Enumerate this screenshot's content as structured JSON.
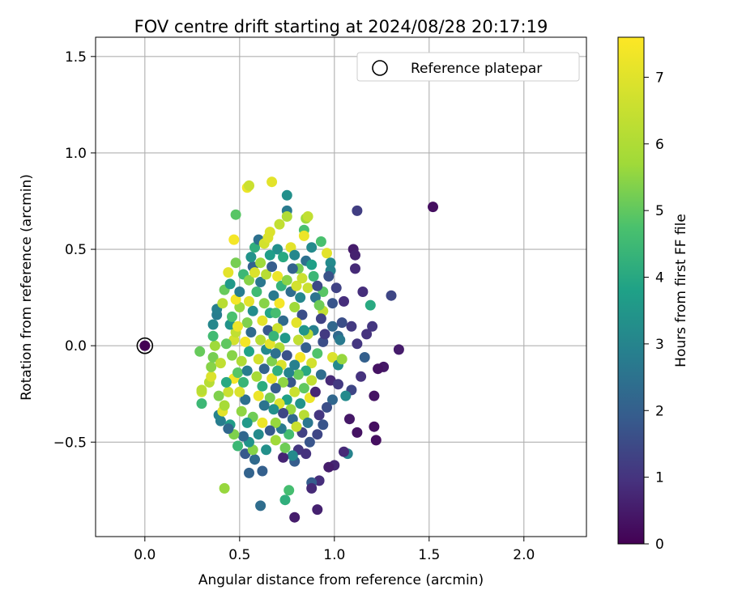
{
  "chart_data": {
    "type": "scatter",
    "title": "FOV centre drift starting at 2024/08/28 20:17:19",
    "xlabel": "Angular distance from reference (arcmin)",
    "ylabel": "Rotation from reference (arcmin)",
    "xlim": [
      -0.26,
      2.33
    ],
    "ylim": [
      -0.99,
      1.6
    ],
    "xticks": [
      0.0,
      0.5,
      1.0,
      1.5,
      2.0
    ],
    "xtick_labels": [
      "0.0",
      "0.5",
      "1.0",
      "1.5",
      "2.0"
    ],
    "yticks": [
      -0.5,
      0.0,
      0.5,
      1.0,
      1.5
    ],
    "ytick_labels": [
      "−0.5",
      "0.0",
      "0.5",
      "1.0",
      "1.5"
    ],
    "grid": true,
    "legend": {
      "position": "top-right",
      "entries": [
        {
          "label": "Reference platepar",
          "marker": "open-circle"
        }
      ]
    },
    "reference_point": {
      "x": 0.0,
      "y": 0.0,
      "c": 0.0
    },
    "colorbar": {
      "label": "Hours from first FF file",
      "colormap": "viridis",
      "range": [
        0,
        7.6
      ],
      "ticks": [
        0,
        1,
        2,
        3,
        4,
        5,
        6,
        7
      ],
      "tick_labels": [
        "0",
        "1",
        "2",
        "3",
        "4",
        "5",
        "6",
        "7"
      ]
    },
    "series_note": "point columns: x (arcmin), y (arcmin), c (hours)",
    "points": [
      [
        1.52,
        0.72,
        0.3
      ],
      [
        1.12,
        0.7,
        1.4
      ],
      [
        1.3,
        0.26,
        1.6
      ],
      [
        1.34,
        -0.02,
        0.6
      ],
      [
        1.26,
        -0.11,
        0.5
      ],
      [
        1.23,
        -0.12,
        0.4
      ],
      [
        1.21,
        -0.26,
        0.4
      ],
      [
        1.22,
        -0.49,
        0.3
      ],
      [
        1.21,
        -0.42,
        0.3
      ],
      [
        1.12,
        -0.45,
        0.4
      ],
      [
        1.1,
        0.5,
        0.6
      ],
      [
        1.11,
        0.47,
        0.7
      ],
      [
        1.11,
        0.4,
        0.9
      ],
      [
        1.15,
        0.28,
        1.0
      ],
      [
        1.19,
        0.21,
        4.6
      ],
      [
        1.2,
        0.1,
        1.2
      ],
      [
        1.17,
        0.06,
        1.1
      ],
      [
        1.09,
        0.1,
        1.3
      ],
      [
        1.05,
        0.23,
        1.0
      ],
      [
        1.01,
        0.3,
        1.5
      ],
      [
        1.12,
        0.01,
        1.2
      ],
      [
        1.16,
        -0.06,
        2.3
      ],
      [
        1.14,
        -0.16,
        1.1
      ],
      [
        1.09,
        -0.23,
        1.6
      ],
      [
        1.06,
        -0.26,
        3.6
      ],
      [
        1.08,
        -0.38,
        0.5
      ],
      [
        1.07,
        -0.56,
        3.4
      ],
      [
        1.05,
        -0.55,
        0.9
      ],
      [
        1.0,
        -0.62,
        0.8
      ],
      [
        0.97,
        -0.63,
        0.6
      ],
      [
        0.92,
        -0.7,
        1.0
      ],
      [
        0.88,
        -0.71,
        2.2
      ],
      [
        0.88,
        -0.74,
        0.9
      ],
      [
        0.79,
        -0.89,
        0.6
      ],
      [
        0.91,
        -0.85,
        0.7
      ],
      [
        0.76,
        -0.75,
        5.3
      ],
      [
        0.74,
        -0.8,
        4.8
      ],
      [
        0.62,
        -0.65,
        2.3
      ],
      [
        0.61,
        -0.83,
        2.7
      ],
      [
        0.55,
        -0.66,
        2.4
      ],
      [
        0.53,
        -0.56,
        2.1
      ],
      [
        0.42,
        -0.74,
        6.4
      ],
      [
        0.45,
        -0.41,
        4.2
      ],
      [
        0.4,
        -0.39,
        3.2
      ],
      [
        0.39,
        -0.36,
        3.4
      ],
      [
        0.3,
        -0.3,
        5.1
      ],
      [
        0.3,
        -0.24,
        7.0
      ],
      [
        0.3,
        -0.23,
        6.8
      ],
      [
        0.34,
        -0.19,
        6.8
      ],
      [
        0.35,
        -0.16,
        7.2
      ],
      [
        0.35,
        -0.11,
        6.2
      ],
      [
        0.36,
        -0.06,
        6.0
      ],
      [
        0.29,
        -0.03,
        5.8
      ],
      [
        0.37,
        0.0,
        6.5
      ],
      [
        0.36,
        0.05,
        5.2
      ],
      [
        0.36,
        0.11,
        3.5
      ],
      [
        0.38,
        0.16,
        3.2
      ],
      [
        0.38,
        0.19,
        3.3
      ],
      [
        0.41,
        0.22,
        6.8
      ],
      [
        0.42,
        0.29,
        5.8
      ],
      [
        0.45,
        0.32,
        4.1
      ],
      [
        0.48,
        0.43,
        6.0
      ],
      [
        0.44,
        0.38,
        7.3
      ],
      [
        0.47,
        0.55,
        7.5
      ],
      [
        0.48,
        0.68,
        5.6
      ],
      [
        0.54,
        0.82,
        7.4
      ],
      [
        0.55,
        0.83,
        7.0
      ],
      [
        0.67,
        0.85,
        7.3
      ],
      [
        0.75,
        0.78,
        3.8
      ],
      [
        0.75,
        0.7,
        3.1
      ],
      [
        0.75,
        0.67,
        6.7
      ],
      [
        0.71,
        0.63,
        6.9
      ],
      [
        0.66,
        0.59,
        7.2
      ],
      [
        0.85,
        0.66,
        6.5
      ],
      [
        0.86,
        0.67,
        6.9
      ],
      [
        0.84,
        0.6,
        5.4
      ],
      [
        0.84,
        0.57,
        7.4
      ],
      [
        0.88,
        0.51,
        3.6
      ],
      [
        0.93,
        0.54,
        5.4
      ],
      [
        0.96,
        0.48,
        7.3
      ],
      [
        0.98,
        0.43,
        3.6
      ],
      [
        0.98,
        0.39,
        3.4
      ],
      [
        0.94,
        0.28,
        5.6
      ],
      [
        0.94,
        0.18,
        6.9
      ],
      [
        0.97,
        0.36,
        1.9
      ],
      [
        0.99,
        0.22,
        2.0
      ],
      [
        0.99,
        0.1,
        2.5
      ],
      [
        1.04,
        0.12,
        1.8
      ],
      [
        1.02,
        0.05,
        2.6
      ],
      [
        1.03,
        0.03,
        3.1
      ],
      [
        0.99,
        -0.06,
        7.2
      ],
      [
        1.02,
        -0.1,
        3.6
      ],
      [
        1.04,
        -0.07,
        6.4
      ],
      [
        0.98,
        -0.18,
        0.9
      ],
      [
        1.02,
        -0.2,
        1.3
      ],
      [
        0.99,
        -0.28,
        2.5
      ],
      [
        0.96,
        -0.32,
        1.8
      ],
      [
        0.92,
        -0.36,
        1.2
      ],
      [
        0.94,
        -0.41,
        2.0
      ],
      [
        0.91,
        -0.46,
        1.6
      ],
      [
        0.87,
        -0.5,
        2.0
      ],
      [
        0.83,
        -0.45,
        1.5
      ],
      [
        0.81,
        -0.54,
        1.2
      ],
      [
        0.85,
        -0.56,
        1.1
      ],
      [
        0.79,
        -0.6,
        2.2
      ],
      [
        0.78,
        -0.57,
        3.6
      ],
      [
        0.73,
        -0.58,
        0.8
      ],
      [
        0.74,
        -0.53,
        5.9
      ],
      [
        0.69,
        -0.49,
        6.5
      ],
      [
        0.64,
        -0.54,
        3.8
      ],
      [
        0.58,
        -0.59,
        2.6
      ],
      [
        0.57,
        -0.54,
        6.2
      ],
      [
        0.55,
        -0.5,
        3.9
      ],
      [
        0.52,
        -0.47,
        2.5
      ],
      [
        0.49,
        -0.52,
        5.1
      ],
      [
        0.47,
        -0.46,
        6.1
      ],
      [
        0.44,
        -0.43,
        2.5
      ],
      [
        0.41,
        -0.34,
        7.3
      ],
      [
        0.42,
        -0.31,
        6.6
      ],
      [
        0.44,
        -0.24,
        7.0
      ],
      [
        0.47,
        -0.17,
        7.5
      ],
      [
        0.49,
        -0.14,
        5.6
      ],
      [
        0.46,
        -0.05,
        6.2
      ],
      [
        0.47,
        0.03,
        7.1
      ],
      [
        0.48,
        0.07,
        6.9
      ],
      [
        0.45,
        0.11,
        3.9
      ],
      [
        0.46,
        0.15,
        5.4
      ],
      [
        0.5,
        0.2,
        6.4
      ],
      [
        0.48,
        0.24,
        7.5
      ],
      [
        0.5,
        0.28,
        3.2
      ],
      [
        0.52,
        0.37,
        5.1
      ],
      [
        0.55,
        0.34,
        6.2
      ],
      [
        0.57,
        0.41,
        2.4
      ],
      [
        0.56,
        0.46,
        3.9
      ],
      [
        0.58,
        0.51,
        4.8
      ],
      [
        0.6,
        0.55,
        2.8
      ],
      [
        0.63,
        0.53,
        7.1
      ],
      [
        0.65,
        0.56,
        7.2
      ],
      [
        0.7,
        0.5,
        3.8
      ],
      [
        0.73,
        0.46,
        4.6
      ],
      [
        0.77,
        0.51,
        7.3
      ],
      [
        0.79,
        0.47,
        3.5
      ],
      [
        0.81,
        0.4,
        6.0
      ],
      [
        0.85,
        0.44,
        2.8
      ],
      [
        0.88,
        0.42,
        4.3
      ],
      [
        0.89,
        0.36,
        5.1
      ],
      [
        0.86,
        0.3,
        7.0
      ],
      [
        0.9,
        0.25,
        2.9
      ],
      [
        0.92,
        0.21,
        5.9
      ],
      [
        0.93,
        0.14,
        1.5
      ],
      [
        0.89,
        0.08,
        3.3
      ],
      [
        0.86,
        0.06,
        6.8
      ],
      [
        0.94,
        0.02,
        1.8
      ],
      [
        0.91,
        -0.04,
        5.5
      ],
      [
        0.88,
        -0.09,
        7.1
      ],
      [
        0.85,
        -0.13,
        4.6
      ],
      [
        0.88,
        -0.18,
        6.9
      ],
      [
        0.84,
        -0.22,
        5.7
      ],
      [
        0.87,
        -0.27,
        7.4
      ],
      [
        0.82,
        -0.3,
        3.9
      ],
      [
        0.84,
        -0.36,
        6.8
      ],
      [
        0.78,
        -0.38,
        2.5
      ],
      [
        0.8,
        -0.42,
        7.0
      ],
      [
        0.76,
        -0.46,
        5.3
      ],
      [
        0.72,
        -0.43,
        3.1
      ],
      [
        0.69,
        -0.4,
        6.4
      ],
      [
        0.66,
        -0.44,
        2.1
      ],
      [
        0.62,
        -0.4,
        7.4
      ],
      [
        0.6,
        -0.46,
        3.6
      ],
      [
        0.57,
        -0.37,
        5.9
      ],
      [
        0.54,
        -0.4,
        4.1
      ],
      [
        0.51,
        -0.34,
        6.3
      ],
      [
        0.53,
        -0.28,
        2.8
      ],
      [
        0.5,
        -0.24,
        7.2
      ],
      [
        0.52,
        -0.19,
        5.0
      ],
      [
        0.54,
        -0.13,
        3.2
      ],
      [
        0.51,
        -0.08,
        6.7
      ],
      [
        0.55,
        -0.03,
        4.4
      ],
      [
        0.53,
        0.02,
        7.5
      ],
      [
        0.56,
        0.07,
        2.6
      ],
      [
        0.54,
        0.12,
        6.1
      ],
      [
        0.57,
        0.18,
        3.7
      ],
      [
        0.55,
        0.23,
        7.3
      ],
      [
        0.59,
        0.28,
        5.2
      ],
      [
        0.61,
        0.33,
        3.0
      ],
      [
        0.64,
        0.37,
        6.8
      ],
      [
        0.67,
        0.41,
        2.2
      ],
      [
        0.7,
        0.36,
        7.4
      ],
      [
        0.72,
        0.31,
        4.9
      ],
      [
        0.75,
        0.34,
        6.2
      ],
      [
        0.77,
        0.28,
        2.7
      ],
      [
        0.8,
        0.31,
        7.1
      ],
      [
        0.82,
        0.25,
        3.5
      ],
      [
        0.79,
        0.2,
        6.5
      ],
      [
        0.83,
        0.16,
        1.8
      ],
      [
        0.8,
        0.12,
        7.3
      ],
      [
        0.84,
        0.08,
        4.0
      ],
      [
        0.81,
        0.03,
        6.9
      ],
      [
        0.85,
        -0.01,
        2.3
      ],
      [
        0.82,
        -0.06,
        7.5
      ],
      [
        0.79,
        -0.1,
        3.3
      ],
      [
        0.81,
        -0.15,
        5.8
      ],
      [
        0.77,
        -0.19,
        2.0
      ],
      [
        0.79,
        -0.24,
        7.0
      ],
      [
        0.75,
        -0.28,
        4.3
      ],
      [
        0.77,
        -0.33,
        6.4
      ],
      [
        0.73,
        -0.35,
        1.6
      ],
      [
        0.71,
        -0.3,
        7.2
      ],
      [
        0.68,
        -0.33,
        3.8
      ],
      [
        0.66,
        -0.27,
        6.0
      ],
      [
        0.63,
        -0.31,
        2.9
      ],
      [
        0.6,
        -0.26,
        7.4
      ],
      [
        0.62,
        -0.21,
        4.7
      ],
      [
        0.59,
        -0.16,
        6.6
      ],
      [
        0.63,
        -0.12,
        2.4
      ],
      [
        0.6,
        -0.07,
        7.1
      ],
      [
        0.64,
        -0.02,
        3.6
      ],
      [
        0.61,
        0.03,
        6.8
      ],
      [
        0.65,
        0.08,
        2.1
      ],
      [
        0.62,
        0.13,
        7.3
      ],
      [
        0.66,
        0.17,
        4.5
      ],
      [
        0.63,
        0.22,
        6.2
      ],
      [
        0.68,
        0.26,
        3.1
      ],
      [
        0.71,
        0.22,
        7.5
      ],
      [
        0.69,
        0.17,
        5.3
      ],
      [
        0.73,
        0.13,
        2.6
      ],
      [
        0.7,
        0.09,
        7.0
      ],
      [
        0.74,
        0.04,
        4.1
      ],
      [
        0.71,
        -0.01,
        6.7
      ],
      [
        0.75,
        -0.05,
        1.9
      ],
      [
        0.72,
        -0.1,
        7.2
      ],
      [
        0.76,
        -0.14,
        3.4
      ],
      [
        0.73,
        -0.19,
        6.3
      ],
      [
        0.69,
        -0.22,
        2.2
      ],
      [
        0.67,
        -0.17,
        7.4
      ],
      [
        0.7,
        -0.13,
        4.8
      ],
      [
        0.67,
        -0.08,
        6.1
      ],
      [
        0.69,
        -0.04,
        2.8
      ],
      [
        0.66,
        0.01,
        7.3
      ],
      [
        0.68,
        0.05,
        5.0
      ],
      [
        0.58,
        0.38,
        7.2
      ],
      [
        0.61,
        0.43,
        6.5
      ],
      [
        0.66,
        0.47,
        4.2
      ],
      [
        0.78,
        0.4,
        2.4
      ],
      [
        0.83,
        0.35,
        7.0
      ],
      [
        0.91,
        0.31,
        1.7
      ],
      [
        0.95,
        0.06,
        1.3
      ],
      [
        0.93,
        -0.15,
        2.7
      ],
      [
        0.9,
        -0.24,
        0.8
      ],
      [
        0.86,
        -0.4,
        3.0
      ],
      [
        0.49,
        0.1,
        7.4
      ],
      [
        0.43,
        0.01,
        5.7
      ],
      [
        0.4,
        -0.09,
        6.9
      ],
      [
        0.43,
        -0.19,
        4.6
      ],
      [
        0.39,
        -0.26,
        6.1
      ]
    ]
  }
}
